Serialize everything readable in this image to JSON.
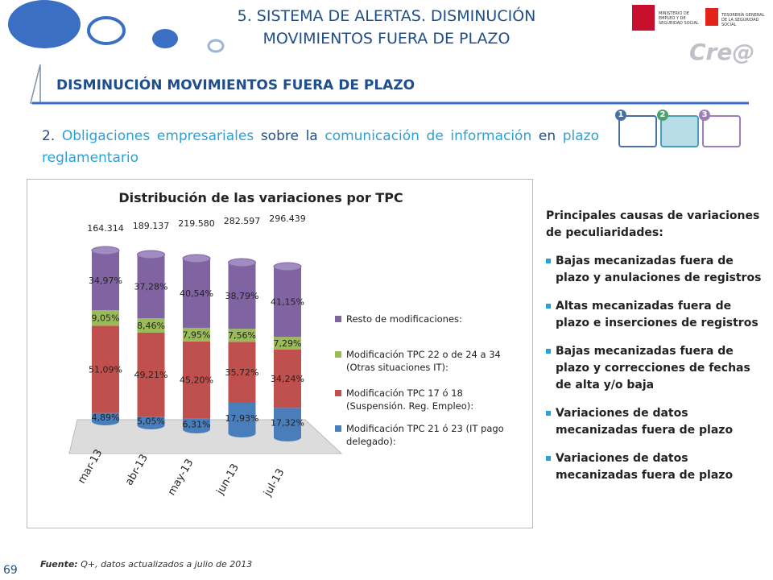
{
  "header": {
    "title_lines": [
      "5. SISTEMA DE ALERTAS. DISMINUCIÓN",
      "MOVIMIENTOS FUERA DE PLAZO"
    ],
    "logo_left": "MINISTERIO DE EMPLEO Y DE SEGURIDAD SOCIAL",
    "logo_right": "TESORERÍA GENERAL DE LA SEGURIDAD SOCIAL",
    "brand": "Cre@",
    "subtitle": "DISMINUCIÓN MOVIMIENTOS FUERA DE PLAZO"
  },
  "steps": [
    "1",
    "2",
    "3"
  ],
  "heading": [
    {
      "text": "2.",
      "accent": false
    },
    {
      "text": "Obligaciones empresariales",
      "accent": true
    },
    {
      "text": "sobre la",
      "accent": false
    },
    {
      "text": "comunicación de información",
      "accent": true
    },
    {
      "text": "en",
      "accent": false
    },
    {
      "text": "plazo reglamentario",
      "accent": true
    }
  ],
  "chart_data": {
    "type": "stacked_cylinder",
    "title": "Distribución de las variaciones por TPC",
    "categories": [
      "mar-13",
      "abr-13",
      "may-13",
      "jun-13",
      "jul-13"
    ],
    "ylim": [
      0,
      100
    ],
    "totals": {
      "values": [
        164314,
        189137,
        219580,
        282597,
        296439
      ],
      "value_labels": [
        "164.314",
        "189.137",
        "219.580",
        "282.597",
        "296.439"
      ]
    },
    "series": [
      {
        "name": "Modificación TPC 21 ó 23 (IT pago delegado):",
        "color": "#4a7ebb",
        "values": [
          4.89,
          5.05,
          6.31,
          17.93,
          17.32
        ],
        "value_labels": [
          "4,89%",
          "5,05%",
          "6,31%",
          "17,93%",
          "17,32%"
        ]
      },
      {
        "name": "Modificación TPC 17 ó 18 (Suspensión. Reg. Empleo):",
        "color": "#c0504d",
        "values": [
          51.09,
          49.21,
          45.2,
          35.72,
          34.24
        ],
        "value_labels": [
          "51,09%",
          "49,21%",
          "45,20%",
          "35,72%",
          "34,24%"
        ]
      },
      {
        "name": "Modificación TPC 22 o de 24 a 34 (Otras situaciones IT):",
        "color": "#9bbb59",
        "values": [
          9.05,
          8.46,
          7.95,
          7.56,
          7.29
        ],
        "value_labels": [
          "9,05%",
          "8,46%",
          "7,95%",
          "7,56%",
          "7,29%"
        ]
      },
      {
        "name": "Resto de modificaciones:",
        "color": "#8064a2",
        "values": [
          34.97,
          37.28,
          40.54,
          38.79,
          41.15
        ],
        "value_labels": [
          "34,97%",
          "37,28%",
          "40,54%",
          "38,79%",
          "41,15%"
        ]
      }
    ]
  },
  "side": {
    "intro": "Principales causas de variaciones de peculiaridades:",
    "bullets": [
      "Bajas mecanizadas fuera de plazo y anulaciones de registros",
      "Altas mecanizadas fuera de plazo e inserciones de registros",
      "Bajas mecanizadas fuera de plazo y correcciones de fechas de alta y/o baja",
      "Variaciones de datos mecanizadas fuera de plazo",
      "Variaciones de datos mecanizadas fuera de plazo"
    ]
  },
  "footer": {
    "source_label": "Fuente:",
    "source_text": "Q+, datos actualizados a julio de 2013",
    "page": "69"
  }
}
